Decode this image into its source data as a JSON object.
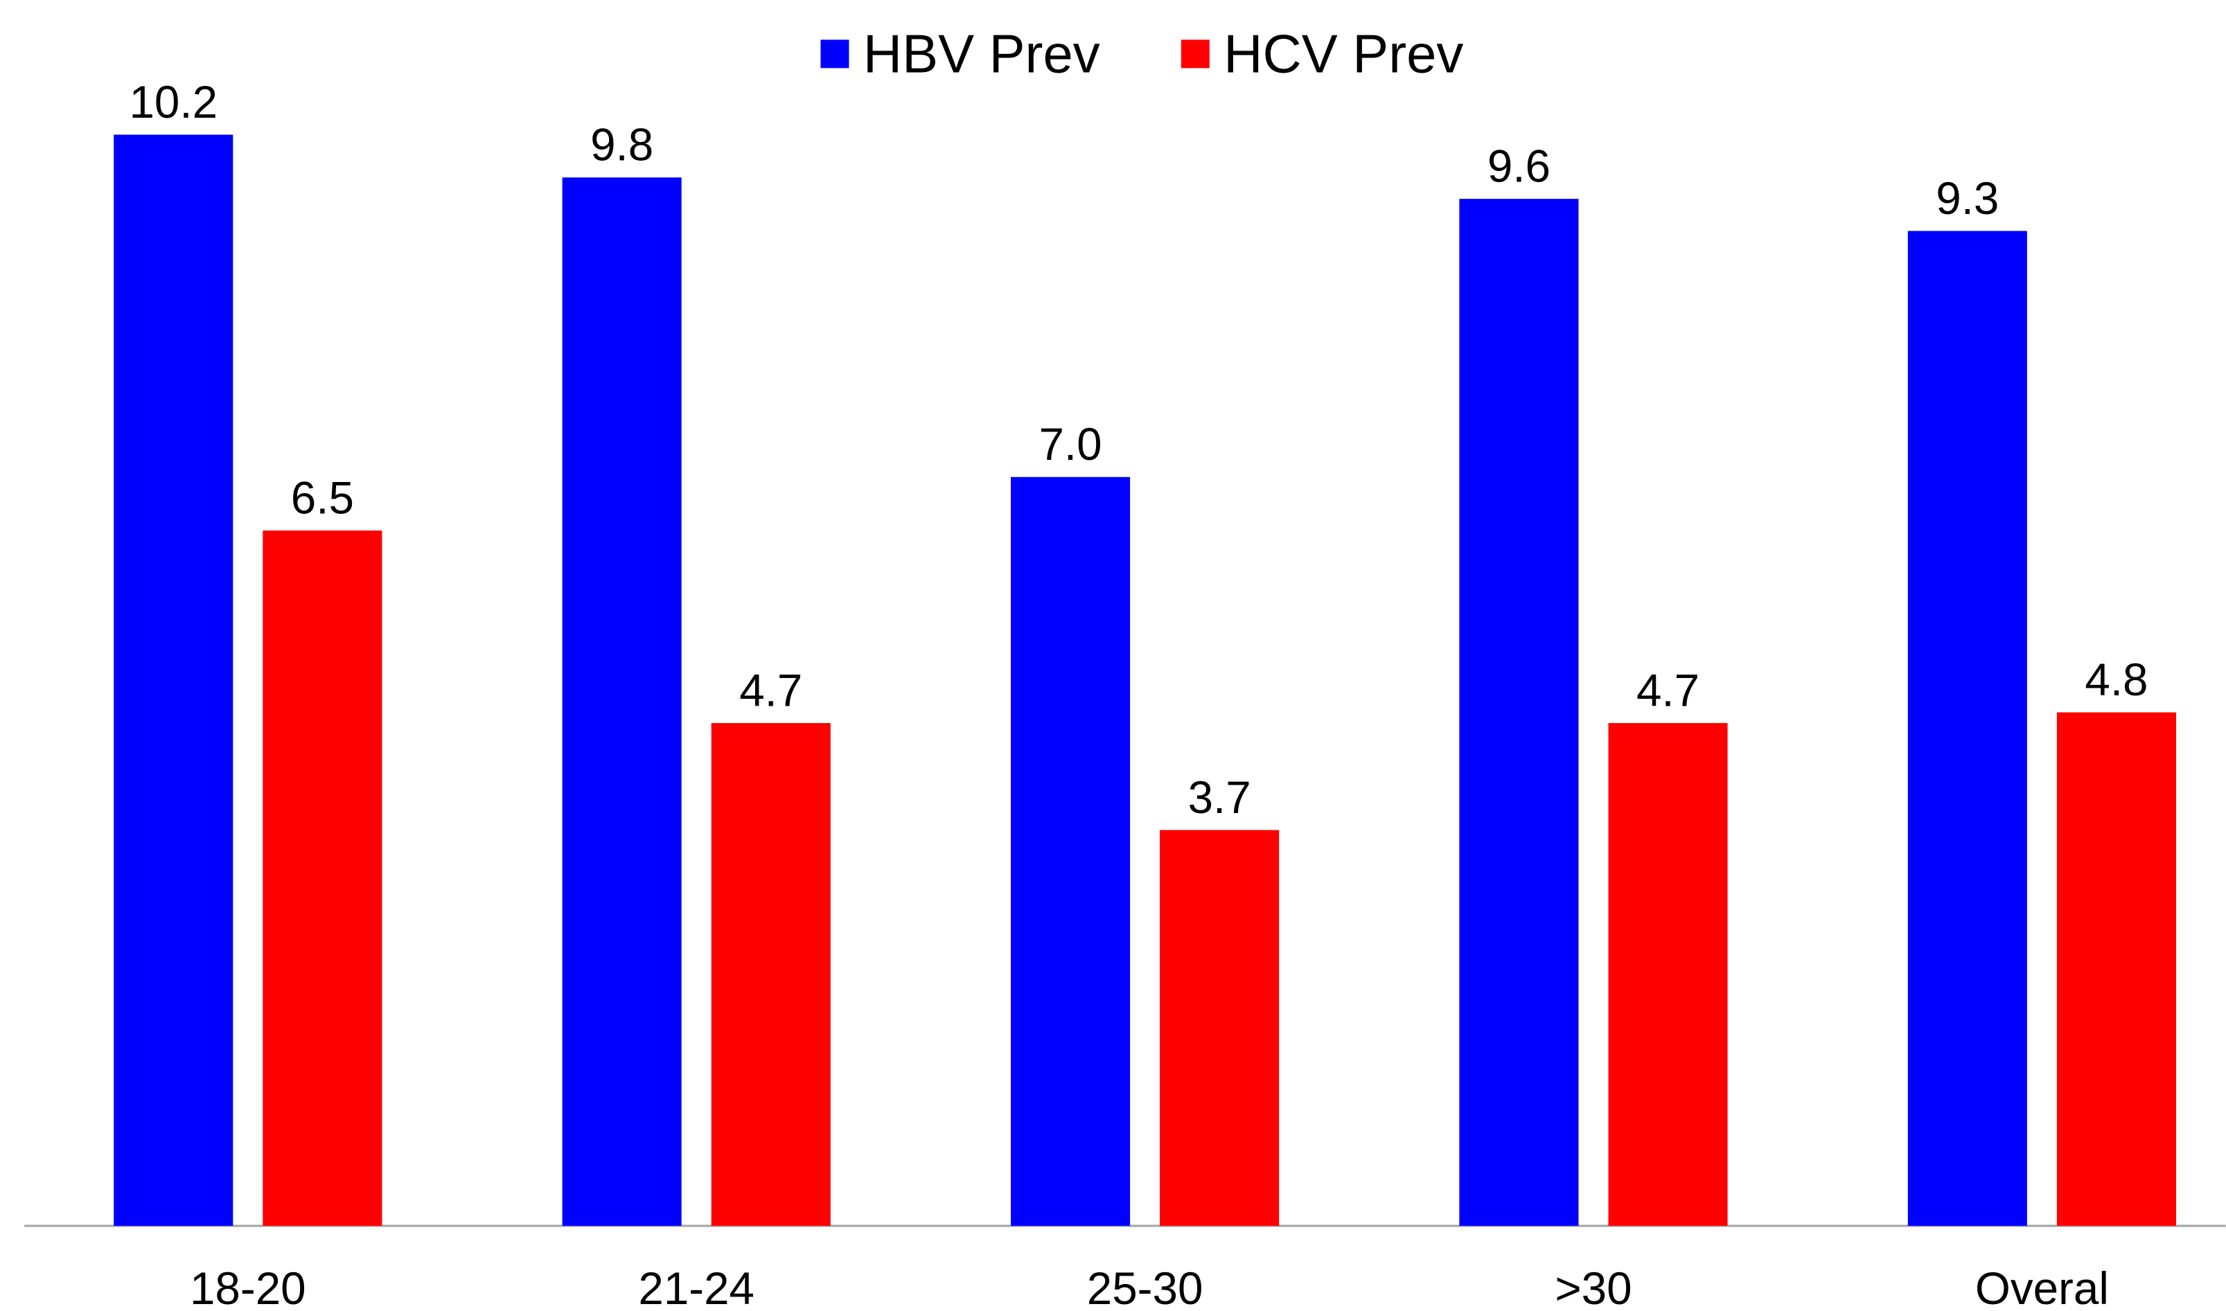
{
  "chart_data": {
    "type": "bar",
    "categories": [
      "18-20",
      "21-24",
      "25-30",
      ">30",
      "Overal"
    ],
    "series": [
      {
        "name": "HBV Prev",
        "color": "#0000ff",
        "values": [
          10.2,
          9.8,
          7.0,
          9.6,
          9.3
        ],
        "value_labels": [
          "10.2",
          "9.8",
          "7.0",
          "9.6",
          "9.3"
        ]
      },
      {
        "name": "HCV Prev",
        "color": "#ff0000",
        "values": [
          6.5,
          4.7,
          3.7,
          4.7,
          4.8
        ],
        "value_labels": [
          "6.5",
          "4.7",
          "3.7",
          "4.7",
          "4.8"
        ]
      }
    ],
    "legend": "top"
  }
}
